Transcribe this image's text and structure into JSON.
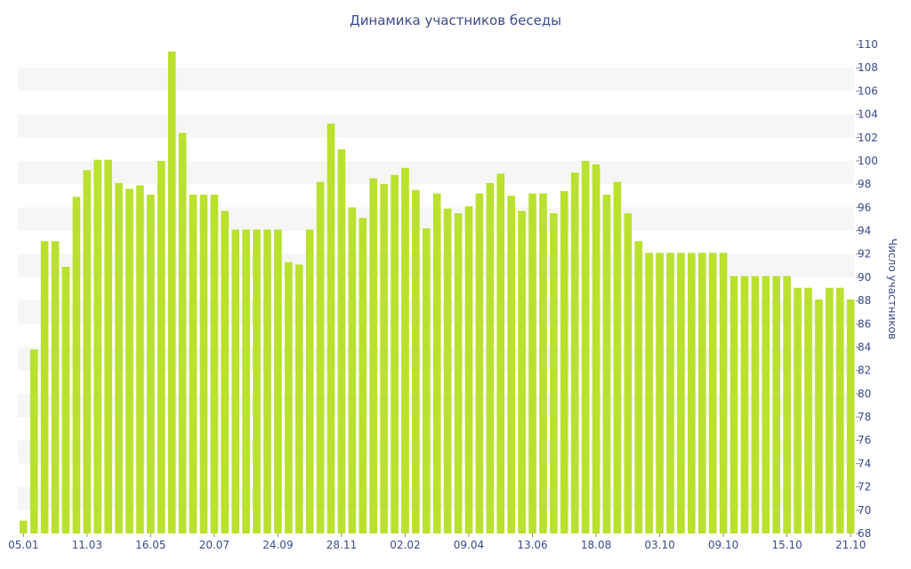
{
  "chart_data": {
    "type": "bar",
    "title": "Динамика участников беседы",
    "xlabel": "",
    "ylabel": "Число участников",
    "ylim": [
      68,
      110
    ],
    "y_ticks": [
      68,
      70,
      72,
      74,
      76,
      78,
      80,
      82,
      84,
      86,
      88,
      90,
      92,
      94,
      96,
      98,
      100,
      102,
      104,
      106,
      108,
      110
    ],
    "y_axis_position": "right",
    "grid": "alternating horizontal bands",
    "bar_color": "#b9e12d",
    "band_color": "#f6f6f6",
    "text_color": "#3a4a8c",
    "x_tick_labels": [
      {
        "index": 0,
        "label": "05.01"
      },
      {
        "index": 6,
        "label": "11.03"
      },
      {
        "index": 12,
        "label": "16.05"
      },
      {
        "index": 18,
        "label": "20.07"
      },
      {
        "index": 24,
        "label": "24.09"
      },
      {
        "index": 30,
        "label": "28.11"
      },
      {
        "index": 36,
        "label": "02.02"
      },
      {
        "index": 42,
        "label": "09.04"
      },
      {
        "index": 48,
        "label": "13.06"
      },
      {
        "index": 54,
        "label": "18.08"
      },
      {
        "index": 60,
        "label": "03.10"
      },
      {
        "index": 66,
        "label": "09.10"
      },
      {
        "index": 72,
        "label": "15.10"
      },
      {
        "index": 78,
        "label": "21.10"
      }
    ],
    "values": [
      69.1,
      83.8,
      93.1,
      93.1,
      90.9,
      96.9,
      99.2,
      100.1,
      100.1,
      98.1,
      97.6,
      97.9,
      97.1,
      100.0,
      109.4,
      102.4,
      97.1,
      97.1,
      97.1,
      95.7,
      94.1,
      94.1,
      94.1,
      94.1,
      94.1,
      91.3,
      91.1,
      94.1,
      98.2,
      103.2,
      101.0,
      96.0,
      95.1,
      98.5,
      98.0,
      98.8,
      99.4,
      97.5,
      94.2,
      97.2,
      95.9,
      95.5,
      96.1,
      97.2,
      98.1,
      98.9,
      97.0,
      95.7,
      97.2,
      97.2,
      95.5,
      97.4,
      99.0,
      100.0,
      99.7,
      97.1,
      98.2,
      95.5,
      93.1,
      92.1,
      92.1,
      92.1,
      92.1,
      92.1,
      92.1,
      92.1,
      92.1,
      90.1,
      90.1,
      90.1,
      90.1,
      90.1,
      90.1,
      89.1,
      89.1,
      88.1,
      89.1,
      89.1,
      88.1
    ]
  }
}
